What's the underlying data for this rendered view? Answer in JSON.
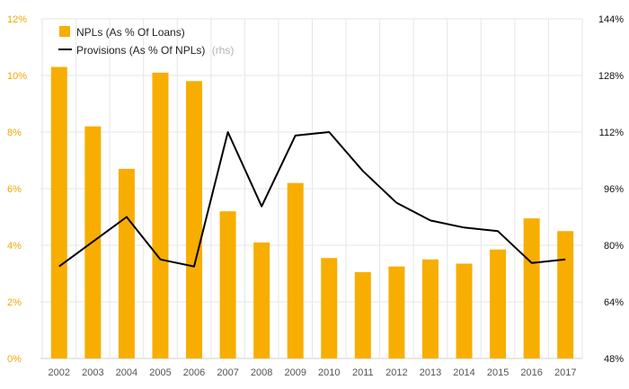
{
  "chart_data": {
    "type": "bar",
    "categories": [
      "2002",
      "2003",
      "2004",
      "2005",
      "2006",
      "2007",
      "2008",
      "2009",
      "2010",
      "2011",
      "2012",
      "2013",
      "2014",
      "2015",
      "2016",
      "2017"
    ],
    "series": [
      {
        "name": "NPLs (As % Of Loans)",
        "type": "bar",
        "axis": "left",
        "color": "#f7ae00",
        "values": [
          10.3,
          8.2,
          6.7,
          10.1,
          9.8,
          5.2,
          4.1,
          6.2,
          3.55,
          3.05,
          3.25,
          3.5,
          3.35,
          3.85,
          4.95,
          4.5
        ]
      },
      {
        "name": "Provisions (As % Of NPLs)",
        "legend_suffix": "(rhs)",
        "type": "line",
        "axis": "right",
        "color": "#000000",
        "values": [
          74,
          81,
          88,
          76,
          74,
          112,
          91,
          111,
          112,
          101,
          92,
          87,
          85,
          84,
          75,
          76
        ]
      }
    ],
    "left_axis": {
      "ylim": [
        0,
        12
      ],
      "ticks": [
        0,
        2,
        4,
        6,
        8,
        10,
        12
      ],
      "tick_labels": [
        "0%",
        "2%",
        "4%",
        "6%",
        "8%",
        "10%",
        "12%"
      ],
      "color": "#f0a800"
    },
    "right_axis": {
      "ylim": [
        48,
        144
      ],
      "ticks": [
        48,
        64,
        80,
        96,
        112,
        128,
        144
      ],
      "tick_labels": [
        "48%",
        "64%",
        "80%",
        "96%",
        "112%",
        "128%",
        "144%"
      ],
      "color": "#111111"
    },
    "grid": true,
    "legend_placement": "top-left"
  }
}
